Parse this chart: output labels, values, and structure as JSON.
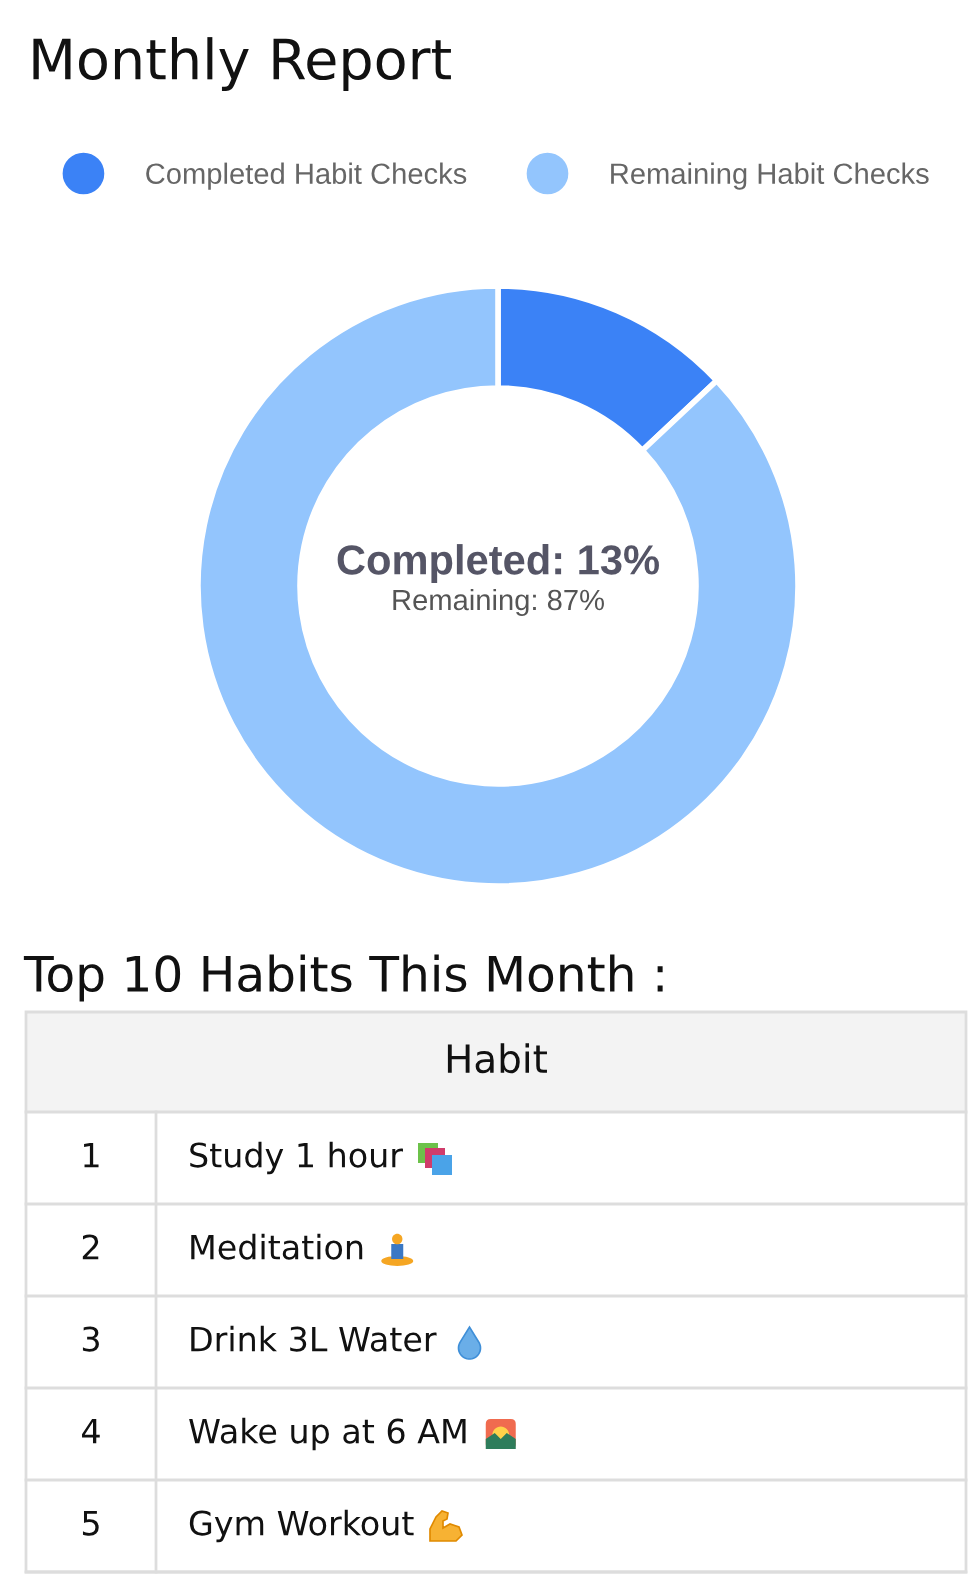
{
  "chart_data": [
    {
      "type": "donut",
      "title": "Monthly Report",
      "categories": [
        "Completed Habit Checks",
        "Remaining Habit Checks"
      ],
      "values": [
        13,
        87
      ],
      "colors": [
        "#3b82f6",
        "#93c5fd"
      ],
      "legend": "top",
      "annotations": [
        "Completed: 13%",
        "Remaining: 87%"
      ]
    },
    {
      "type": "other",
      "title": "Top 10 Habits This Month :",
      "annotations": [
        "Habit"
      ],
      "categories": [
        "Study 1 hour",
        "Meditation",
        "Drink 3L Water",
        "Wake up at 6 AM",
        "Gym Workout"
      ],
      "values": [
        1,
        2,
        3,
        4,
        5
      ],
      "data_labels": true
    }
  ]
}
